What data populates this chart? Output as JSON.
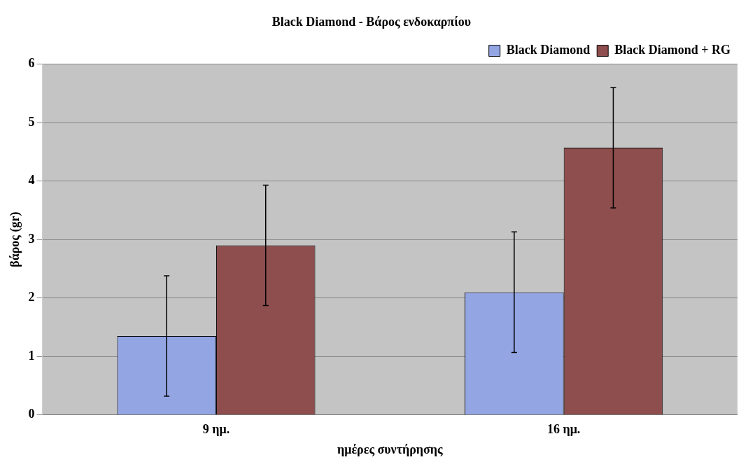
{
  "chart_data": {
    "type": "bar",
    "title": "Black Diamond - Βάρος ενδοκαρπίου",
    "xlabel": "ημέρες συντήρησης",
    "ylabel": "βάρος (gr)",
    "categories": [
      "9 ημ.",
      "16 ημ."
    ],
    "series": [
      {
        "name": "Black Diamond",
        "color": "#94a5e4",
        "values": [
          1.35,
          2.1
        ],
        "errors": [
          1.03,
          1.03
        ]
      },
      {
        "name": "Black Diamond + RG",
        "color": "#8e4e4e",
        "values": [
          2.9,
          4.57
        ],
        "errors": [
          1.03,
          1.03
        ]
      }
    ],
    "ylim": [
      0,
      6
    ],
    "yticks": [
      0,
      1,
      2,
      3,
      4,
      5,
      6
    ],
    "grid": "y",
    "legend": "top right"
  }
}
